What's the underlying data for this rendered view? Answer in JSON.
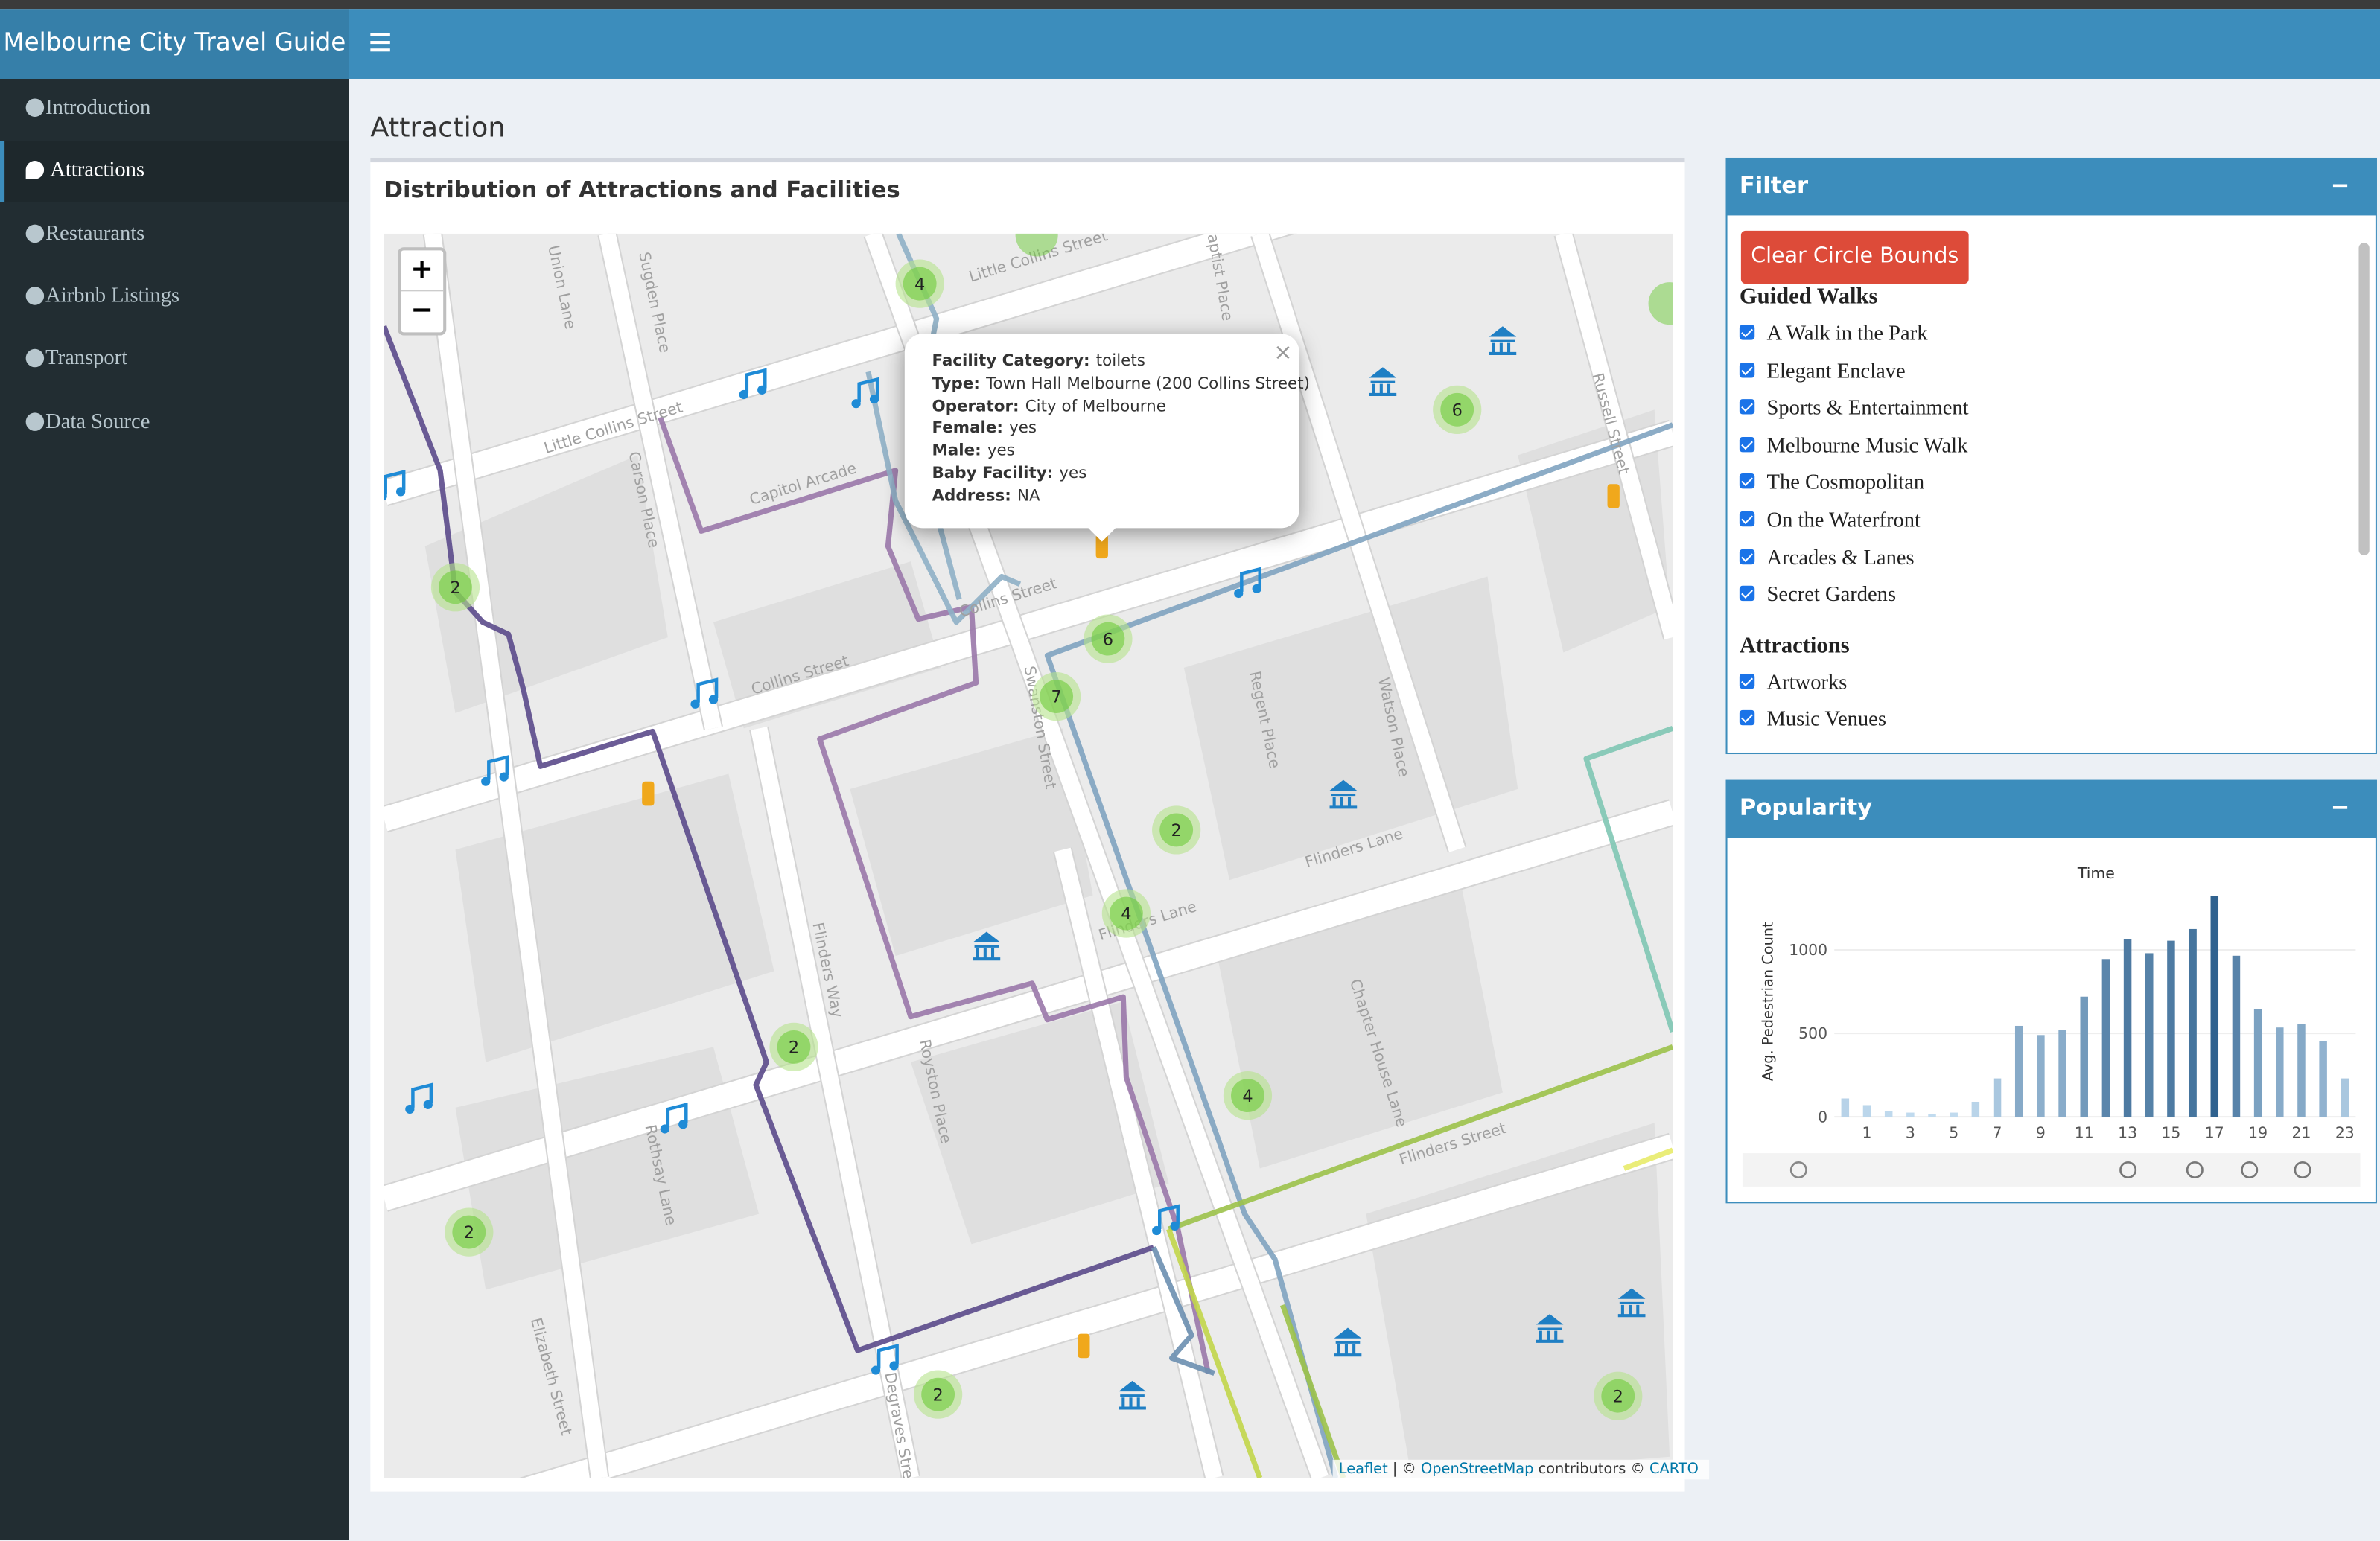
{
  "sidebar": {
    "title": "Melbourne City Travel Guide",
    "menu": [
      "Introduction",
      "Attractions",
      "Restaurants",
      "Airbnb Listings",
      "Transport",
      "Data Source"
    ]
  },
  "page_title": "Attraction",
  "map_box": {
    "title": "Distribution of Attractions and Facilities",
    "zoom": [
      "+",
      "−"
    ],
    "clusters": [
      4,
      6,
      2,
      6,
      7,
      2,
      4,
      2,
      4,
      2,
      2,
      2
    ],
    "streets": [
      "Little Collins Street",
      "Little Collins Street",
      "Capitol Arcade",
      "Collins Street",
      "Collins Street",
      "Flinders Lane",
      "Flinders Lane",
      "Flinders Street",
      "Swanston Street",
      "Russell Street",
      "Regent Place",
      "Watson Place",
      "Chapter House Lane",
      "Flinders Way",
      "Royston Place",
      "Rothsay Lane",
      "Elizabeth Street",
      "Carson Place",
      "Union Lane",
      "Sugden Place",
      "Degraves Street",
      "Baptist Place"
    ],
    "popup": {
      "close": "×",
      "fields": [
        {
          "label": "Facility Category:",
          "value": "toilets"
        },
        {
          "label": "Type:",
          "value": "Town Hall Melbourne (200 Collins Street)"
        },
        {
          "label": "Operator:",
          "value": "City of Melbourne"
        },
        {
          "label": "Female:",
          "value": "yes"
        },
        {
          "label": "Male:",
          "value": "yes"
        },
        {
          "label": "Baby Facility:",
          "value": "yes"
        },
        {
          "label": "Address:",
          "value": "NA"
        }
      ]
    },
    "attribution": [
      "Leaflet",
      "| ©",
      "OpenStreetMap",
      "contributors ©",
      "CARTO"
    ]
  },
  "filter": {
    "title": "Filter",
    "collapse": "−",
    "button": "Clear Circle Bounds",
    "groups": [
      {
        "title": "Guided Walks",
        "items": [
          "A Walk in the Park",
          "Elegant Enclave",
          "Sports & Entertainment",
          "Melbourne Music Walk",
          "The Cosmopolitan",
          "On the Waterfront",
          "Arcades & Lanes",
          "Secret Gardens"
        ]
      },
      {
        "title": "Attractions",
        "items": [
          "Artworks",
          "Music Venues"
        ]
      }
    ]
  },
  "popularity": {
    "title": "Popularity",
    "collapse": "−",
    "chart": {
      "type": "bar",
      "title": "Time",
      "y_label": "Avg. Pedestrian Count",
      "x": [
        0,
        1,
        2,
        3,
        4,
        5,
        6,
        7,
        8,
        9,
        10,
        11,
        12,
        13,
        14,
        15,
        16,
        17,
        18,
        19,
        20,
        21,
        22,
        23
      ],
      "values": [
        110,
        70,
        35,
        25,
        15,
        25,
        90,
        230,
        545,
        490,
        520,
        720,
        945,
        1065,
        980,
        1055,
        1125,
        1325,
        965,
        645,
        535,
        555,
        455,
        230
      ],
      "xlim": [
        -0.5,
        23.5
      ],
      "xticks": [
        1,
        3,
        5,
        7,
        9,
        11,
        13,
        15,
        17,
        19,
        21,
        23
      ],
      "ylim": [
        0,
        1370
      ],
      "yticks": [
        0,
        500,
        1000
      ],
      "grid": true,
      "colorscale": [
        "#c3dcf0",
        "#2b5e8c"
      ]
    }
  }
}
